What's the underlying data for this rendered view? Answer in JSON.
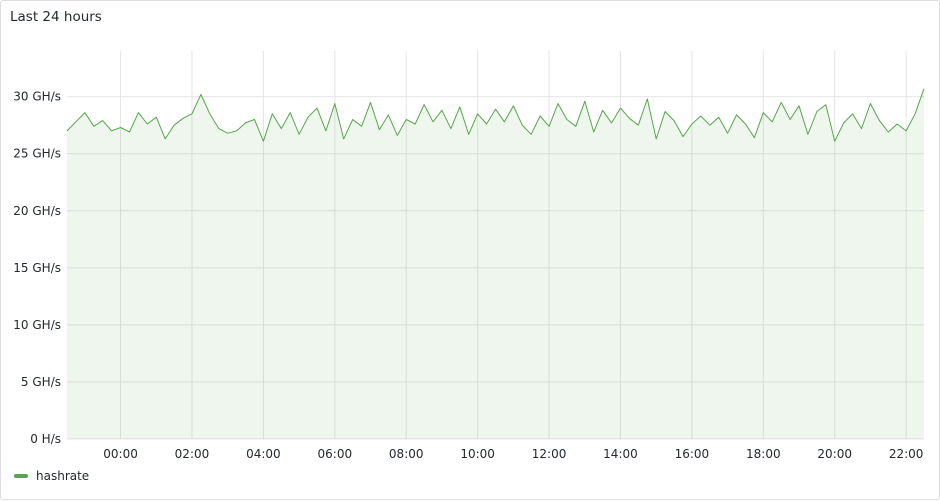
{
  "panel": {
    "title": "Last 24 hours"
  },
  "chart_data": {
    "type": "area",
    "title": "Last 24 hours",
    "xlabel": "",
    "ylabel": "",
    "ylim": [
      0,
      34
    ],
    "grid": true,
    "legend_placement": "bottom-left",
    "y_ticks": [
      0,
      5,
      10,
      15,
      20,
      25,
      30
    ],
    "y_tick_labels": [
      "0 H/s",
      "5 GH/s",
      "10 GH/s",
      "15 GH/s",
      "20 GH/s",
      "25 GH/s",
      "30 GH/s"
    ],
    "x_tick_labels": [
      "00:00",
      "02:00",
      "04:00",
      "06:00",
      "08:00",
      "10:00",
      "12:00",
      "14:00",
      "16:00",
      "18:00",
      "20:00",
      "22:00"
    ],
    "series": [
      {
        "name": "hashrate",
        "color": "#56a64b",
        "x": [
          "22:30",
          "22:45",
          "23:00",
          "23:15",
          "23:30",
          "23:45",
          "00:00",
          "00:15",
          "00:30",
          "00:45",
          "01:00",
          "01:15",
          "01:30",
          "01:45",
          "02:00",
          "02:15",
          "02:30",
          "02:45",
          "03:00",
          "03:15",
          "03:30",
          "03:45",
          "04:00",
          "04:15",
          "04:30",
          "04:45",
          "05:00",
          "05:15",
          "05:30",
          "05:45",
          "06:00",
          "06:15",
          "06:30",
          "06:45",
          "07:00",
          "07:15",
          "07:30",
          "07:45",
          "08:00",
          "08:15",
          "08:30",
          "08:45",
          "09:00",
          "09:15",
          "09:30",
          "09:45",
          "10:00",
          "10:15",
          "10:30",
          "10:45",
          "11:00",
          "11:15",
          "11:30",
          "11:45",
          "12:00",
          "12:15",
          "12:30",
          "12:45",
          "13:00",
          "13:15",
          "13:30",
          "13:45",
          "14:00",
          "14:15",
          "14:30",
          "14:45",
          "15:00",
          "15:15",
          "15:30",
          "15:45",
          "16:00",
          "16:15",
          "16:30",
          "16:45",
          "17:00",
          "17:15",
          "17:30",
          "17:45",
          "18:00",
          "18:15",
          "18:30",
          "18:45",
          "19:00",
          "19:15",
          "19:30",
          "19:45",
          "20:00",
          "20:15",
          "20:30",
          "20:45",
          "21:00",
          "21:15",
          "21:30",
          "21:45",
          "22:00",
          "22:15",
          "22:30"
        ],
        "values": [
          27.0,
          27.8,
          28.6,
          27.4,
          27.9,
          27.0,
          27.3,
          26.9,
          28.6,
          27.6,
          28.2,
          26.3,
          27.5,
          28.1,
          28.5,
          30.2,
          28.5,
          27.2,
          26.8,
          27.0,
          27.7,
          28.0,
          26.1,
          28.5,
          27.2,
          28.6,
          26.7,
          28.2,
          29.0,
          27.0,
          29.4,
          26.3,
          28.0,
          27.4,
          29.5,
          27.1,
          28.4,
          26.6,
          28.0,
          27.6,
          29.3,
          27.8,
          28.8,
          27.2,
          29.1,
          26.7,
          28.5,
          27.6,
          28.9,
          27.8,
          29.2,
          27.5,
          26.7,
          28.3,
          27.4,
          29.4,
          28.0,
          27.4,
          29.6,
          26.9,
          28.8,
          27.7,
          29.0,
          28.1,
          27.5,
          29.8,
          26.3,
          28.7,
          27.9,
          26.5,
          27.6,
          28.3,
          27.5,
          28.2,
          26.8,
          28.4,
          27.6,
          26.4,
          28.6,
          27.8,
          29.5,
          28.0,
          29.2,
          26.7,
          28.7,
          29.3,
          26.1,
          27.7,
          28.5,
          27.2,
          29.4,
          27.9,
          26.9,
          27.6,
          27.0,
          28.5,
          30.7
        ]
      }
    ]
  }
}
